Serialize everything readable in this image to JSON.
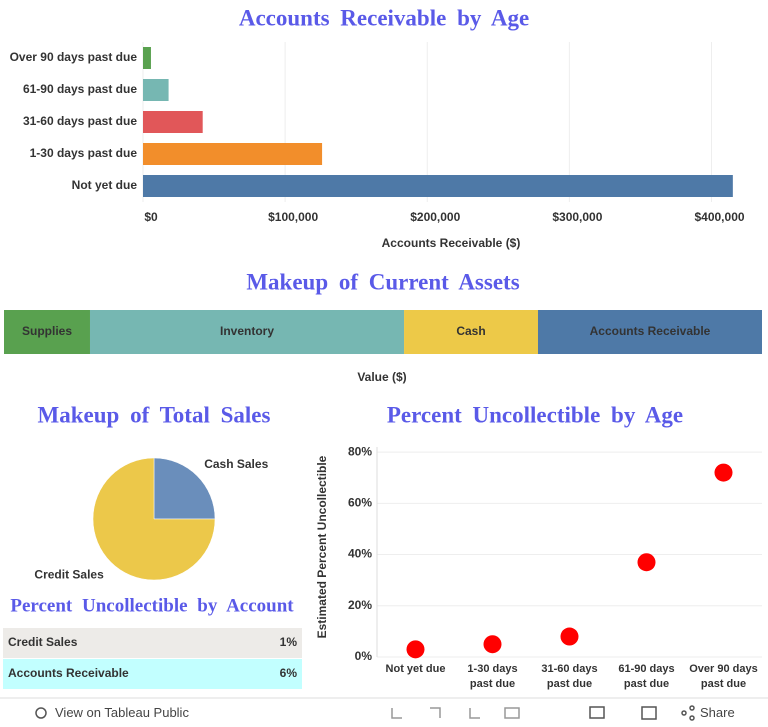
{
  "chart_data": [
    {
      "type": "hbar",
      "title": "Accounts Receivable by Age",
      "categories": [
        "Over 90 days past due",
        "61-90 days past due",
        "31-60 days past due",
        "1-30 days past due",
        "Not yet due"
      ],
      "values": [
        5600,
        18000,
        42000,
        126000,
        415000
      ],
      "colors": [
        "#59a14f",
        "#76b7b2",
        "#e15759",
        "#f28e2b",
        "#4e79a7"
      ],
      "xlabel": "Accounts Receivable ($)",
      "xlim": [
        0,
        432000
      ],
      "xticks": [
        {
          "value": 0,
          "label": "$0"
        },
        {
          "value": 100000,
          "label": "$100,000"
        },
        {
          "value": 200000,
          "label": "$200,000"
        },
        {
          "value": 300000,
          "label": "$300,000"
        },
        {
          "value": 400000,
          "label": "$400,000"
        }
      ],
      "grid": true
    },
    {
      "type": "stacked_hbar",
      "title": "Makeup of Current Assets",
      "xlabel": "Value ($)",
      "xlim": [
        0,
        2054000
      ],
      "series": [
        {
          "name": "Supplies",
          "color": "#59a14f",
          "values": [
            233000
          ]
        },
        {
          "name": "Inventory",
          "color": "#76b7b2",
          "values": [
            851000
          ]
        },
        {
          "name": "Cash",
          "color": "#edc948",
          "values": [
            363000
          ]
        },
        {
          "name": "Accounts Receivable",
          "color": "#4e79a7",
          "values": [
            607000
          ]
        }
      ]
    },
    {
      "type": "pie",
      "title": "Makeup of Total Sales",
      "categories": [
        "Cash Sales",
        "Credit Sales"
      ],
      "values": [
        25,
        75
      ],
      "colors": [
        "#6a8ebb",
        "#ecc84a"
      ]
    },
    {
      "type": "table",
      "title": "Percent Uncollectible by Account",
      "rows": [
        [
          "Credit Sales",
          "1%"
        ],
        [
          "Accounts Receivable",
          "6%"
        ]
      ],
      "row_colors": [
        "#edebe8",
        "#c2ffff"
      ]
    },
    {
      "type": "dot",
      "title": "Percent Uncollectible by Age",
      "ylabel": "Estimated Percent Uncollectible",
      "categories": [
        "Not yet due",
        "1-30 days past due",
        "31-60 days past due",
        "61-90 days past due",
        "Over 90 days past due"
      ],
      "values": [
        3,
        5,
        8,
        37,
        72
      ],
      "color": "#ff0000",
      "ylim": [
        0,
        82
      ],
      "yticks": [
        {
          "value": 0,
          "label": "0%"
        },
        {
          "value": 20,
          "label": "20%"
        },
        {
          "value": 40,
          "label": "40%"
        },
        {
          "value": 60,
          "label": "60%"
        },
        {
          "value": 80,
          "label": "80%"
        }
      ],
      "grid": true
    }
  ],
  "toolbar": {
    "view": "View on Tableau Public",
    "share": "Share"
  }
}
